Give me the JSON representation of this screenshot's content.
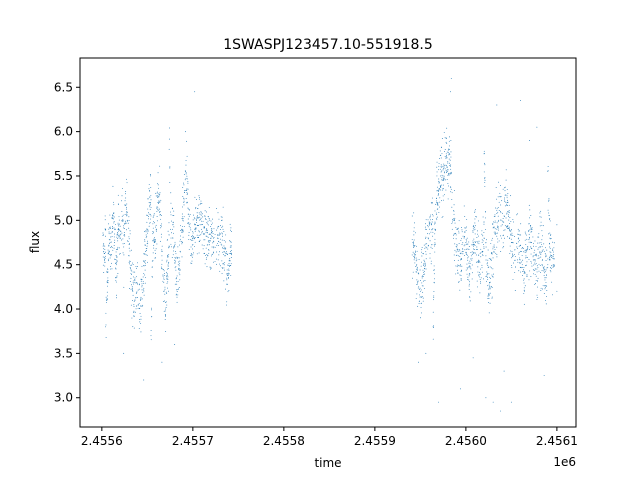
{
  "chart_data": {
    "type": "scatter",
    "title": "1SWASPJ123457.10-551918.5",
    "xlabel": "time",
    "ylabel": "flux",
    "x_offset_label": "1e6",
    "xlim": [
      2455586,
      2456131
    ],
    "ylim": [
      2.67,
      6.83
    ],
    "x_ticks": [
      2455610,
      2455620,
      2455630,
      2455640,
      2455650,
      2455660,
      2455670,
      2455680,
      2455690,
      2455700,
      2455710,
      2455720,
      2455730,
      2455740,
      2455750,
      2455760,
      2455770,
      2455780,
      2455790,
      2455800,
      2455810,
      2455820,
      2455830,
      2455840,
      2455850,
      2455860,
      2455870,
      2455880,
      2455890,
      2455900,
      2455910,
      2455920,
      2455930,
      2455940,
      2455950,
      2455960,
      2455970,
      2455980,
      2455990,
      2456000,
      2456010,
      2456020,
      2456030,
      2456040,
      2456050,
      2456060,
      2456070,
      2456080,
      2456090,
      2456100,
      2456110
    ],
    "x_tick_labels": [
      "2.4556",
      "",
      "",
      "",
      "",
      "",
      "",
      "",
      "",
      "",
      "2.4557",
      "",
      "",
      "",
      "",
      "",
      "",
      "",
      "",
      "",
      "2.4558",
      "",
      "",
      "",
      "",
      "",
      "",
      "",
      "",
      "",
      "2.4559",
      "",
      "",
      "",
      "",
      "",
      "",
      "",
      "",
      "",
      "2.4560",
      "",
      "",
      "",
      "",
      "",
      "",
      "",
      "",
      "",
      "2.4561"
    ],
    "y_ticks": [
      3.0,
      3.5,
      4.0,
      4.5,
      5.0,
      5.5,
      6.0,
      6.5
    ],
    "y_tick_labels": [
      "3.0",
      "3.5",
      "4.0",
      "4.5",
      "5.0",
      "5.5",
      "6.0",
      "6.5"
    ],
    "series": [
      {
        "color": "#1f77b4",
        "segments": [
          {
            "t0": 2455611,
            "t1": 2455753,
            "base": 4.72,
            "spread": 0.28
          },
          {
            "t0": 2455951,
            "t1": 2456107,
            "base": 4.75,
            "spread": 0.3
          }
        ],
        "points": [
          [
            2455612,
            4.68
          ],
          [
            2455613,
            4.55
          ],
          [
            2455614,
            4.9
          ],
          [
            2455616,
            4.3
          ],
          [
            2455618,
            4.85
          ],
          [
            2455620,
            4.6
          ],
          [
            2455622,
            5.05
          ],
          [
            2455624,
            4.75
          ],
          [
            2455626,
            4.5
          ],
          [
            2455628,
            4.95
          ],
          [
            2455630,
            4.8
          ],
          [
            2455632,
            5.1
          ],
          [
            2455634,
            4.7
          ],
          [
            2455636,
            5.3
          ],
          [
            2455638,
            5.0
          ],
          [
            2455640,
            4.6
          ],
          [
            2455642,
            4.4
          ],
          [
            2455644,
            4.2
          ],
          [
            2455646,
            4.1
          ],
          [
            2455648,
            4.3
          ],
          [
            2455650,
            4.05
          ],
          [
            2455652,
            3.95
          ],
          [
            2455654,
            4.25
          ],
          [
            2455656,
            4.4
          ],
          [
            2455658,
            4.65
          ],
          [
            2455660,
            4.9
          ],
          [
            2455662,
            5.2
          ],
          [
            2455664,
            5.05
          ],
          [
            2455666,
            4.85
          ],
          [
            2455668,
            4.75
          ],
          [
            2455670,
            4.9
          ],
          [
            2455672,
            5.4
          ],
          [
            2455674,
            5.1
          ],
          [
            2455676,
            4.6
          ],
          [
            2455678,
            4.3
          ],
          [
            2455680,
            4.0
          ],
          [
            2455682,
            4.45
          ],
          [
            2455684,
            4.7
          ],
          [
            2455686,
            4.8
          ],
          [
            2455688,
            4.95
          ],
          [
            2455690,
            4.55
          ],
          [
            2455692,
            4.35
          ],
          [
            2455694,
            4.5
          ],
          [
            2455696,
            4.65
          ],
          [
            2455698,
            4.9
          ],
          [
            2455700,
            5.2
          ],
          [
            2455702,
            5.55
          ],
          [
            2455704,
            5.3
          ],
          [
            2455706,
            4.95
          ],
          [
            2455708,
            4.7
          ],
          [
            2455710,
            4.8
          ],
          [
            2455712,
            4.9
          ],
          [
            2455714,
            5.0
          ],
          [
            2455718,
            4.95
          ],
          [
            2455722,
            4.85
          ],
          [
            2455730,
            4.8
          ],
          [
            2455740,
            4.75
          ],
          [
            2455745,
            4.6
          ],
          [
            2455748,
            4.4
          ],
          [
            2455750,
            4.55
          ],
          [
            2455752,
            4.7
          ],
          [
            2455614,
            3.8
          ],
          [
            2455634,
            3.5
          ],
          [
            2455656,
            3.2
          ],
          [
            2455664,
            3.7
          ],
          [
            2455676,
            3.4
          ],
          [
            2455690,
            3.6
          ],
          [
            2455702,
            6.0
          ],
          [
            2455712,
            6.45
          ],
          [
            2455684,
            5.8
          ],
          [
            2455952,
            4.75
          ],
          [
            2455954,
            4.6
          ],
          [
            2455956,
            4.5
          ],
          [
            2455958,
            4.4
          ],
          [
            2455960,
            4.2
          ],
          [
            2455962,
            4.35
          ],
          [
            2455964,
            4.55
          ],
          [
            2455966,
            4.7
          ],
          [
            2455968,
            4.85
          ],
          [
            2455970,
            4.9
          ],
          [
            2455972,
            4.95
          ],
          [
            2455974,
            5.05
          ],
          [
            2455976,
            4.9
          ],
          [
            2455978,
            5.2
          ],
          [
            2455980,
            5.3
          ],
          [
            2455982,
            5.5
          ],
          [
            2455984,
            5.45
          ],
          [
            2455986,
            5.6
          ],
          [
            2455988,
            5.7
          ],
          [
            2455990,
            5.55
          ],
          [
            2455992,
            5.8
          ],
          [
            2455994,
            5.35
          ],
          [
            2455996,
            5.0
          ],
          [
            2455998,
            4.85
          ],
          [
            2456000,
            4.7
          ],
          [
            2456002,
            4.6
          ],
          [
            2456004,
            4.5
          ],
          [
            2456006,
            4.65
          ],
          [
            2456008,
            4.8
          ],
          [
            2456010,
            4.75
          ],
          [
            2456012,
            4.55
          ],
          [
            2456014,
            4.4
          ],
          [
            2456016,
            4.6
          ],
          [
            2456018,
            4.75
          ],
          [
            2456020,
            4.9
          ],
          [
            2456022,
            4.7
          ],
          [
            2456024,
            4.55
          ],
          [
            2456026,
            4.45
          ],
          [
            2456028,
            4.65
          ],
          [
            2456030,
            4.8
          ],
          [
            2456032,
            4.6
          ],
          [
            2456034,
            4.4
          ],
          [
            2456036,
            4.3
          ],
          [
            2456038,
            4.55
          ],
          [
            2456040,
            4.7
          ],
          [
            2456042,
            4.85
          ],
          [
            2456044,
            4.9
          ],
          [
            2456046,
            5.0
          ],
          [
            2456048,
            5.1
          ],
          [
            2456050,
            4.95
          ],
          [
            2456052,
            5.05
          ],
          [
            2456054,
            5.2
          ],
          [
            2456056,
            5.1
          ],
          [
            2456058,
            4.9
          ],
          [
            2456060,
            4.75
          ],
          [
            2456062,
            4.6
          ],
          [
            2456064,
            4.55
          ],
          [
            2456066,
            4.7
          ],
          [
            2456068,
            4.8
          ],
          [
            2456070,
            4.65
          ],
          [
            2456072,
            4.5
          ],
          [
            2456074,
            4.4
          ],
          [
            2456076,
            4.6
          ],
          [
            2456078,
            4.7
          ],
          [
            2456080,
            4.8
          ],
          [
            2456082,
            4.75
          ],
          [
            2456084,
            4.6
          ],
          [
            2456086,
            4.5
          ],
          [
            2456088,
            4.45
          ],
          [
            2456090,
            4.6
          ],
          [
            2456092,
            4.7
          ],
          [
            2456094,
            4.55
          ],
          [
            2456096,
            4.45
          ],
          [
            2456098,
            4.3
          ],
          [
            2456100,
            4.5
          ],
          [
            2456102,
            4.7
          ],
          [
            2456104,
            4.6
          ],
          [
            2456106,
            4.5
          ],
          [
            2455994,
            6.6
          ],
          [
            2455993,
            6.45
          ],
          [
            2456040,
            2.95
          ],
          [
            2456048,
            2.85
          ],
          [
            2456052,
            3.3
          ],
          [
            2456032,
            3.0
          ],
          [
            2456060,
            2.95
          ],
          [
            2456070,
            6.35
          ],
          [
            2456044,
            6.3
          ],
          [
            2455980,
            2.95
          ],
          [
            2455966,
            3.5
          ],
          [
            2456088,
            6.05
          ],
          [
            2456100,
            5.55
          ],
          [
            2456096,
            3.25
          ],
          [
            2456080,
            5.9
          ],
          [
            2456004,
            3.1
          ],
          [
            2456018,
            3.45
          ],
          [
            2456030,
            5.75
          ],
          [
            2456110,
            4.95
          ],
          [
            2456110,
            4.2
          ],
          [
            2455958,
            3.4
          ],
          [
            2455974,
            3.8
          ]
        ]
      }
    ]
  }
}
